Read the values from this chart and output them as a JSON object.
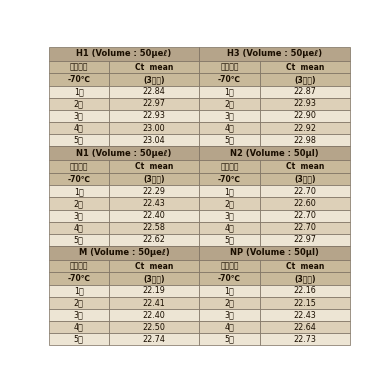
{
  "sections": [
    {
      "title": "H1 (Volume : 50μeℓ)",
      "col1_header1": "도관온도",
      "col1_header2": "-70℃",
      "col2_header1": "Ct  mean",
      "col2_header2": "(3반복)",
      "rows": [
        [
          "1회",
          "22.84"
        ],
        [
          "2회",
          "22.97"
        ],
        [
          "3회",
          "22.93"
        ],
        [
          "4회",
          "23.00"
        ],
        [
          "5회",
          "23.04"
        ]
      ]
    },
    {
      "title": "H3 (Volume : 50μeℓ)",
      "col1_header1": "도관온도",
      "col1_header2": "-70℃",
      "col2_header1": "Ct  mean",
      "col2_header2": "(3반복)",
      "rows": [
        [
          "1회",
          "22.87"
        ],
        [
          "2회",
          "22.93"
        ],
        [
          "3회",
          "22.90"
        ],
        [
          "4회",
          "22.92"
        ],
        [
          "5회",
          "22.98"
        ]
      ]
    },
    {
      "title": "N1 (Volume : 50μeℓ)",
      "col1_header1": "도관온도",
      "col1_header2": "-70℃",
      "col2_header1": "Ct  mean",
      "col2_header2": "(3반복)",
      "rows": [
        [
          "1회",
          "22.29"
        ],
        [
          "2회",
          "22.43"
        ],
        [
          "3회",
          "22.40"
        ],
        [
          "4회",
          "22.58"
        ],
        [
          "5회",
          "22.62"
        ]
      ]
    },
    {
      "title": "N2 (Volume : 50μl)",
      "col1_header1": "도관온도",
      "col1_header2": "-70℃",
      "col2_header1": "Ct  mean",
      "col2_header2": "(3반복)",
      "rows": [
        [
          "1회",
          "22.70"
        ],
        [
          "2회",
          "22.60"
        ],
        [
          "3회",
          "22.70"
        ],
        [
          "4회",
          "22.70"
        ],
        [
          "5회",
          "22.97"
        ]
      ]
    },
    {
      "title": "M (Volume : 50μeℓ)",
      "col1_header1": "도관온도",
      "col1_header2": "-70℃",
      "col2_header1": "Ct  mean",
      "col2_header2": "(3반복)",
      "rows": [
        [
          "1회",
          "22.19"
        ],
        [
          "2회",
          "22.41"
        ],
        [
          "3회",
          "22.40"
        ],
        [
          "4회",
          "22.50"
        ],
        [
          "5회",
          "22.74"
        ]
      ]
    },
    {
      "title": "NP (Volume : 50μl)",
      "col1_header1": "도관온도",
      "col1_header2": "-70℃",
      "col2_header1": "Ct  mean",
      "col2_header2": "(3반복)",
      "rows": [
        [
          "1회",
          "22.16"
        ],
        [
          "2회",
          "22.15"
        ],
        [
          "3회",
          "22.43"
        ],
        [
          "4회",
          "22.64"
        ],
        [
          "5회",
          "22.73"
        ]
      ]
    }
  ],
  "header_bg": "#c8b99a",
  "row_bg_alt": "#ddd0b8",
  "row_bg_main": "#ede5d4",
  "border_color": "#7a6e5f",
  "text_color": "#1a0e00",
  "title_bg": "#b5a48a",
  "title_fontsize": 6.0,
  "header_fontsize": 5.5,
  "data_fontsize": 5.8
}
